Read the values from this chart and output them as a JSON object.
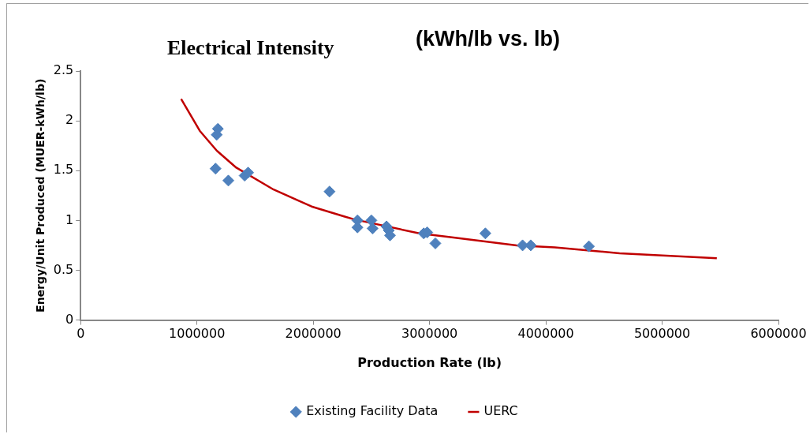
{
  "chart_data": {
    "type": "scatter",
    "title": "Electrical Intensity",
    "subtitle": "(kWh/lb vs. lb)",
    "xlabel": "Production Rate (lb)",
    "ylabel": "Energy/Unit Produced (MUER-kWh/lb)",
    "xlim": [
      0,
      6000000
    ],
    "xticks": [
      0,
      1000000,
      2000000,
      3000000,
      4000000,
      5000000,
      6000000
    ],
    "ylim": [
      0,
      2.5
    ],
    "yticks": [
      0,
      0.5,
      1,
      1.5,
      2,
      2.5
    ],
    "legend": "bottom",
    "series": [
      {
        "name": "Existing Facility Data",
        "marker": "diamond",
        "color": "#4f81bd",
        "x": [
          1180000,
          1170000,
          1160000,
          1270000,
          1410000,
          1440000,
          2140000,
          2380000,
          2380000,
          2500000,
          2510000,
          2630000,
          2650000,
          2660000,
          2950000,
          2980000,
          3050000,
          3480000,
          3800000,
          3870000,
          4370000
        ],
        "values": [
          1.92,
          1.86,
          1.52,
          1.4,
          1.45,
          1.48,
          1.29,
          1.0,
          0.93,
          1.0,
          0.92,
          0.94,
          0.9,
          0.85,
          0.87,
          0.88,
          0.77,
          0.87,
          0.75,
          0.75,
          0.74
        ]
      },
      {
        "name": "UERC",
        "type": "line",
        "marker": "none",
        "color": "#c00000",
        "x": [
          864000,
          1024000,
          1171000,
          1338000,
          1659000,
          1986000,
          2265000,
          2355000,
          2913000,
          3192000,
          3749000,
          4077000,
          4634000,
          5470000
        ],
        "values": [
          2.22,
          1.9,
          1.7,
          1.53,
          1.31,
          1.14,
          1.04,
          1.01,
          0.87,
          0.83,
          0.75,
          0.73,
          0.67,
          0.62
        ]
      }
    ]
  }
}
